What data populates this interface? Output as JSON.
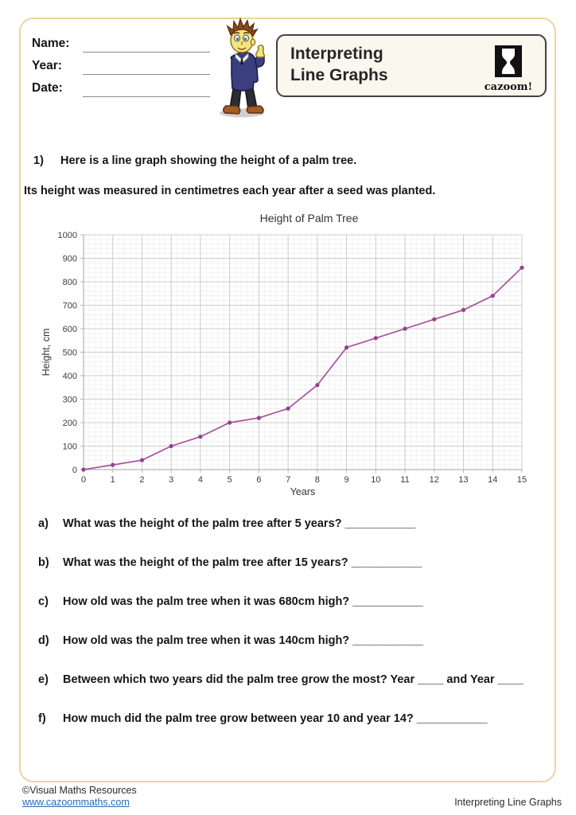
{
  "header": {
    "fields": [
      {
        "label": "Name:"
      },
      {
        "label": "Year:"
      },
      {
        "label": "Date:"
      }
    ],
    "title": {
      "line1": "Interpreting",
      "line2": "Line Graphs"
    },
    "logo": {
      "text": "cazoom!"
    }
  },
  "intro": {
    "number": "1)",
    "line1": "Here is a line graph showing the height of a palm tree.",
    "line2": "Its height was measured in centimetres each year after a seed was planted."
  },
  "questions": [
    {
      "label": "a)",
      "text": "What was the height of the palm tree after 5 years? ___________"
    },
    {
      "label": "b)",
      "text": "What was the height of the palm tree after 15 years? ___________"
    },
    {
      "label": "c)",
      "text": "How old was the palm tree when it was 680cm high? ___________"
    },
    {
      "label": "d)",
      "text": "How old was the palm tree when it was 140cm high? ___________"
    },
    {
      "label": "e)",
      "text": "Between which two years did the palm tree grow the most? Year ____ and Year ____"
    },
    {
      "label": "f)",
      "text": "How much did the palm tree grow between year 10 and year 14? ___________"
    }
  ],
  "footer": {
    "copyright": "©Visual Maths Resources",
    "link": "www.cazoommaths.com",
    "doc_title": "Interpreting Line Graphs"
  },
  "colors": {
    "page_border": "#efd49c",
    "link_blue": "#2a6ab5",
    "series_line": "#a8519e"
  },
  "chart_data": {
    "type": "line",
    "title": "Height of Palm Tree",
    "xlabel": "Years",
    "ylabel": "Height, cm",
    "x": [
      0,
      1,
      2,
      3,
      4,
      5,
      6,
      7,
      8,
      9,
      10,
      11,
      12,
      13,
      14,
      15
    ],
    "y": [
      0,
      20,
      40,
      100,
      140,
      200,
      220,
      260,
      360,
      520,
      560,
      600,
      640,
      680,
      740,
      860
    ],
    "series": [
      {
        "name": "Palm tree height",
        "values": [
          0,
          20,
          40,
          100,
          140,
          200,
          220,
          260,
          360,
          520,
          560,
          600,
          640,
          680,
          740,
          860
        ]
      }
    ],
    "xlim": [
      0,
      15
    ],
    "ylim": [
      0,
      1000
    ],
    "x_tick_step": 1,
    "y_tick_step": 100,
    "minor_per_major": 5,
    "grid": true,
    "legend": "none",
    "line_color": "#a8519e",
    "marker_color": "#953f90",
    "grid_major_color": "#cccccc",
    "grid_minor_color": "#ebebeb",
    "axis_color": "#b3b3b3"
  }
}
